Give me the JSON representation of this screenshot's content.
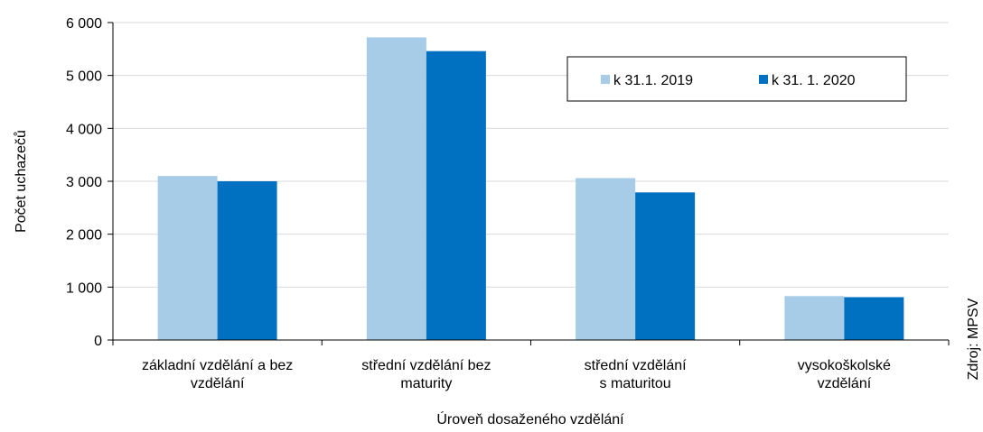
{
  "chart_data": {
    "type": "bar",
    "categories": [
      "základní vzdělání a bez\nvzdělání",
      "střední vzdělání  bez\nmaturity",
      "střední vzdělání\ns maturitou",
      "vysokoškolské\nvzdělání"
    ],
    "series": [
      {
        "name": "k 31.1. 2019",
        "color": "#a6cce8",
        "values": [
          3100,
          5720,
          3060,
          830
        ]
      },
      {
        "name": "k 31. 1. 2020",
        "color": "#0070c0",
        "values": [
          3000,
          5460,
          2790,
          810
        ]
      }
    ],
    "ylim": [
      0,
      6000
    ],
    "yticks": [
      0,
      {
        "value": 1000,
        "label": "1 000"
      },
      {
        "value": 2000,
        "label": "2 000"
      },
      {
        "value": 3000,
        "label": "3 000"
      },
      {
        "value": 4000,
        "label": "4 000"
      },
      {
        "value": 5000,
        "label": "5 000"
      },
      {
        "value": 6000,
        "label": "6 000"
      }
    ],
    "grid": true,
    "y_label": "Počet uchazečů",
    "x_label": "Úroveň dosaženého vzdělání",
    "source": "Zdroj: MPSV",
    "legend": "upper right"
  }
}
